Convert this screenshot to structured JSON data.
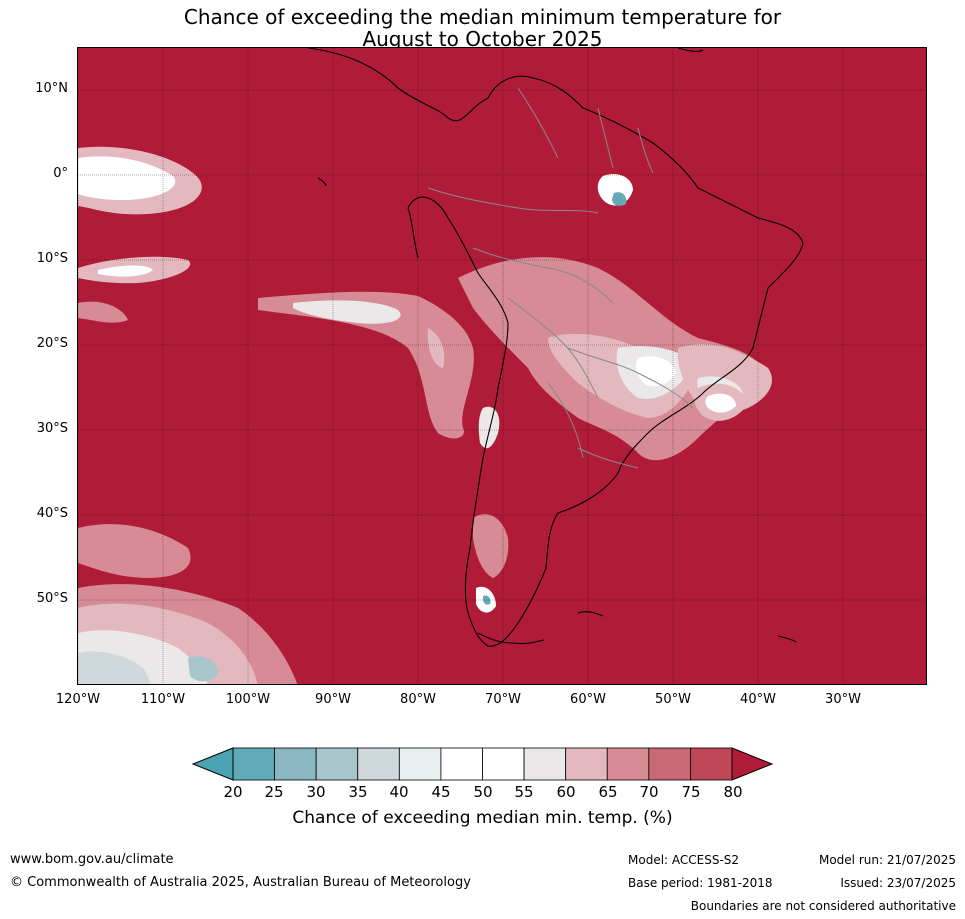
{
  "title": {
    "line1": "Chance of exceeding the median minimum temperature for",
    "line2": "August to October 2025"
  },
  "map": {
    "region": "South America",
    "base_color": "#b01c38",
    "lat_labels": [
      "10°N",
      "0°",
      "10°S",
      "20°S",
      "30°S",
      "40°S",
      "50°S"
    ],
    "lon_labels": [
      "120°W",
      "110°W",
      "100°W",
      "90°W",
      "80°W",
      "70°W",
      "60°W",
      "50°W",
      "40°W",
      "30°W"
    ]
  },
  "colorbar": {
    "ticks": [
      "20",
      "25",
      "30",
      "35",
      "40",
      "45",
      "50",
      "55",
      "60",
      "65",
      "70",
      "75",
      "80"
    ],
    "colors": [
      "#63aab8",
      "#8bb7c3",
      "#a8c5cc",
      "#cfd9dc",
      "#e9eff1",
      "#ffffff",
      "#ffffff",
      "#ebe8e9",
      "#e3b9bf",
      "#d68b95",
      "#c86a76",
      "#bf4656"
    ],
    "under_color": "#4aa3b1",
    "over_color": "#b01c38",
    "label": "Chance of exceeding median min. temp. (%)"
  },
  "footer": {
    "website": "www.bom.gov.au/climate",
    "copyright": "© Commonwealth of Australia 2025, Australian Bureau of Meteorology",
    "model": "Model: ACCESS-S2",
    "base_period": "Base period: 1981-2018",
    "model_run": "Model run: 21/07/2025",
    "issued": "Issued: 23/07/2025",
    "disclaimer": "Boundaries are not considered authoritative"
  }
}
